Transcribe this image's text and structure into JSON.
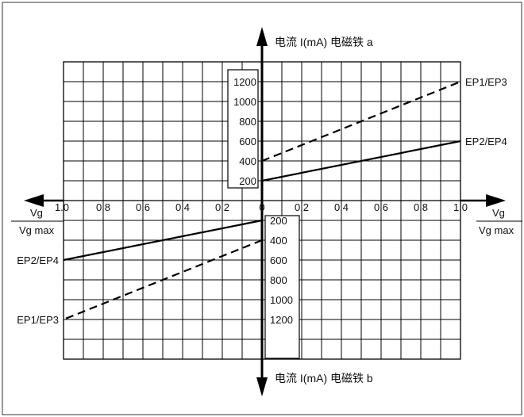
{
  "chart_data": [
    {
      "type": "line",
      "quadrant": "upper",
      "axis_title": "电流 I(mA) 电磁铁 a",
      "x_ticks": [
        "1.0",
        "0.8",
        "0.6",
        "0.4",
        "0.2",
        "0",
        "0.2",
        "0.4",
        "0.6",
        "0.8",
        "1.0"
      ],
      "y_ticks": [
        "200",
        "400",
        "600",
        "800",
        "1000",
        "1200"
      ],
      "ylim": [
        0,
        1300
      ],
      "xlim": [
        0,
        1
      ],
      "x_label_top": "Vg",
      "x_label_bottom": "Vg max",
      "series": [
        {
          "name": "EP1/EP3",
          "style": "dashed",
          "x": [
            0,
            1
          ],
          "y": [
            400,
            1200
          ]
        },
        {
          "name": "EP2/EP4",
          "style": "solid",
          "x": [
            0,
            1
          ],
          "y": [
            200,
            600
          ]
        }
      ]
    },
    {
      "type": "line",
      "quadrant": "lower",
      "axis_title": "电流 I(mA) 电磁铁 b",
      "y_ticks": [
        "200",
        "400",
        "600",
        "800",
        "1000",
        "1200"
      ],
      "ylim": [
        0,
        1300
      ],
      "xlim": [
        0,
        1
      ],
      "x_label_top": "Vg",
      "x_label_bottom": "Vg max",
      "series": [
        {
          "name": "EP2/EP4",
          "style": "solid",
          "x": [
            0,
            1
          ],
          "y": [
            200,
            600
          ]
        },
        {
          "name": "EP1/EP3",
          "style": "dashed",
          "x": [
            0,
            1
          ],
          "y": [
            400,
            1200
          ]
        }
      ]
    }
  ]
}
